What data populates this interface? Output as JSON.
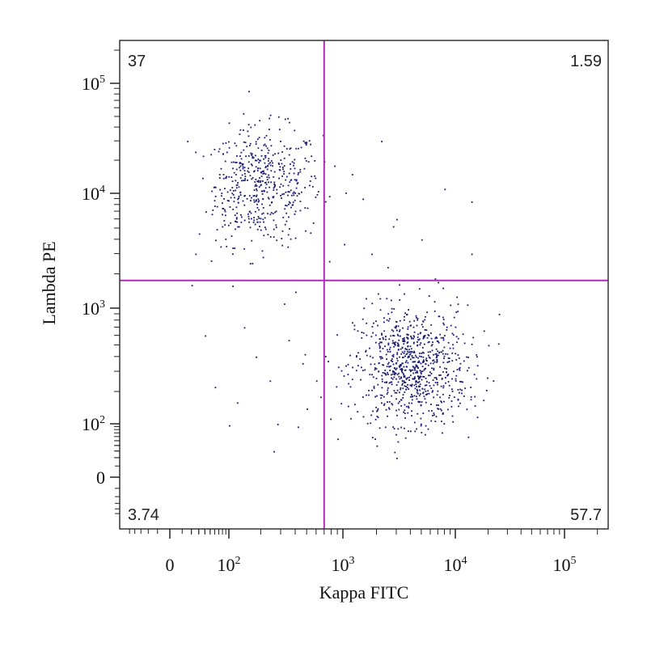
{
  "chart_data": {
    "type": "scatter",
    "xlabel": "Kappa FITC",
    "ylabel": "Lambda PE",
    "x_scale": "biexponential",
    "y_scale": "biexponential",
    "xlim": [
      -60,
      250000
    ],
    "ylim": [
      -60,
      250000
    ],
    "x_ticks": [
      {
        "value": 0,
        "label": "0",
        "sup": ""
      },
      {
        "value": 100,
        "label": "10",
        "sup": "2"
      },
      {
        "value": 1000,
        "label": "10",
        "sup": "3"
      },
      {
        "value": 10000,
        "label": "10",
        "sup": "4"
      },
      {
        "value": 100000,
        "label": "10",
        "sup": "5"
      }
    ],
    "y_ticks": [
      {
        "value": 0,
        "label": "0",
        "sup": ""
      },
      {
        "value": 100,
        "label": "10",
        "sup": "2"
      },
      {
        "value": 1000,
        "label": "10",
        "sup": "3"
      },
      {
        "value": 10000,
        "label": "10",
        "sup": "4"
      },
      {
        "value": 100000,
        "label": "10",
        "sup": "5"
      }
    ],
    "gates": {
      "x": 700,
      "y": 1750
    },
    "quadrants": {
      "upper_left": "37",
      "upper_right": "1.59",
      "lower_left": "3.74",
      "lower_right": "57.7"
    },
    "clusters": [
      {
        "name": "",
        "center_x": 200,
        "center_y": 12000,
        "count": 520,
        "spread_x_decades": 0.26,
        "spread_y_decades": 0.26
      },
      {
        "name": "",
        "center_x": 4000,
        "center_y": 320,
        "count": 850,
        "spread_x_decades": 0.25,
        "spread_y_decades": 0.26
      }
    ],
    "scattered_points": [
      {
        "x": 1500,
        "y": 9000
      },
      {
        "x": 3000,
        "y": 6000
      },
      {
        "x": 5000,
        "y": 4000
      },
      {
        "x": 14000,
        "y": 8500
      },
      {
        "x": 8000,
        "y": 11000
      },
      {
        "x": 2200,
        "y": 30000
      },
      {
        "x": 1200,
        "y": 15000
      },
      {
        "x": 1800,
        "y": 3000
      },
      {
        "x": 2500,
        "y": 2300
      },
      {
        "x": 7000,
        "y": 1700
      },
      {
        "x": 25000,
        "y": 900
      },
      {
        "x": 14000,
        "y": 3000
      },
      {
        "x": 400,
        "y": 1400
      },
      {
        "x": 140,
        "y": 700
      },
      {
        "x": 180,
        "y": 400
      },
      {
        "x": 240,
        "y": 250
      },
      {
        "x": 120,
        "y": 160
      },
      {
        "x": 280,
        "y": 100
      },
      {
        "x": 100,
        "y": 95
      },
      {
        "x": 420,
        "y": 90
      },
      {
        "x": 500,
        "y": 140
      },
      {
        "x": 600,
        "y": 250
      },
      {
        "x": 650,
        "y": 180
      },
      {
        "x": 260,
        "y": 30
      },
      {
        "x": 40,
        "y": 600
      },
      {
        "x": 60,
        "y": 220
      },
      {
        "x": 20,
        "y": 1600
      },
      {
        "x": 15,
        "y": 30000
      },
      {
        "x": 25,
        "y": 3000
      },
      {
        "x": 30,
        "y": 4500
      },
      {
        "x": 900,
        "y": 55
      },
      {
        "x": 2000,
        "y": 40
      },
      {
        "x": 3000,
        "y": 20
      },
      {
        "x": 15000,
        "y": 150
      },
      {
        "x": 13000,
        "y": 60
      },
      {
        "x": 20000,
        "y": 500
      },
      {
        "x": 350,
        "y": 550
      },
      {
        "x": 480,
        "y": 420
      },
      {
        "x": 320,
        "y": 1100
      },
      {
        "x": 2800,
        "y": 5200
      }
    ],
    "point_color": "#1a1a6e",
    "gate_color": "#b02bb8",
    "grid": false,
    "legend": "none"
  }
}
